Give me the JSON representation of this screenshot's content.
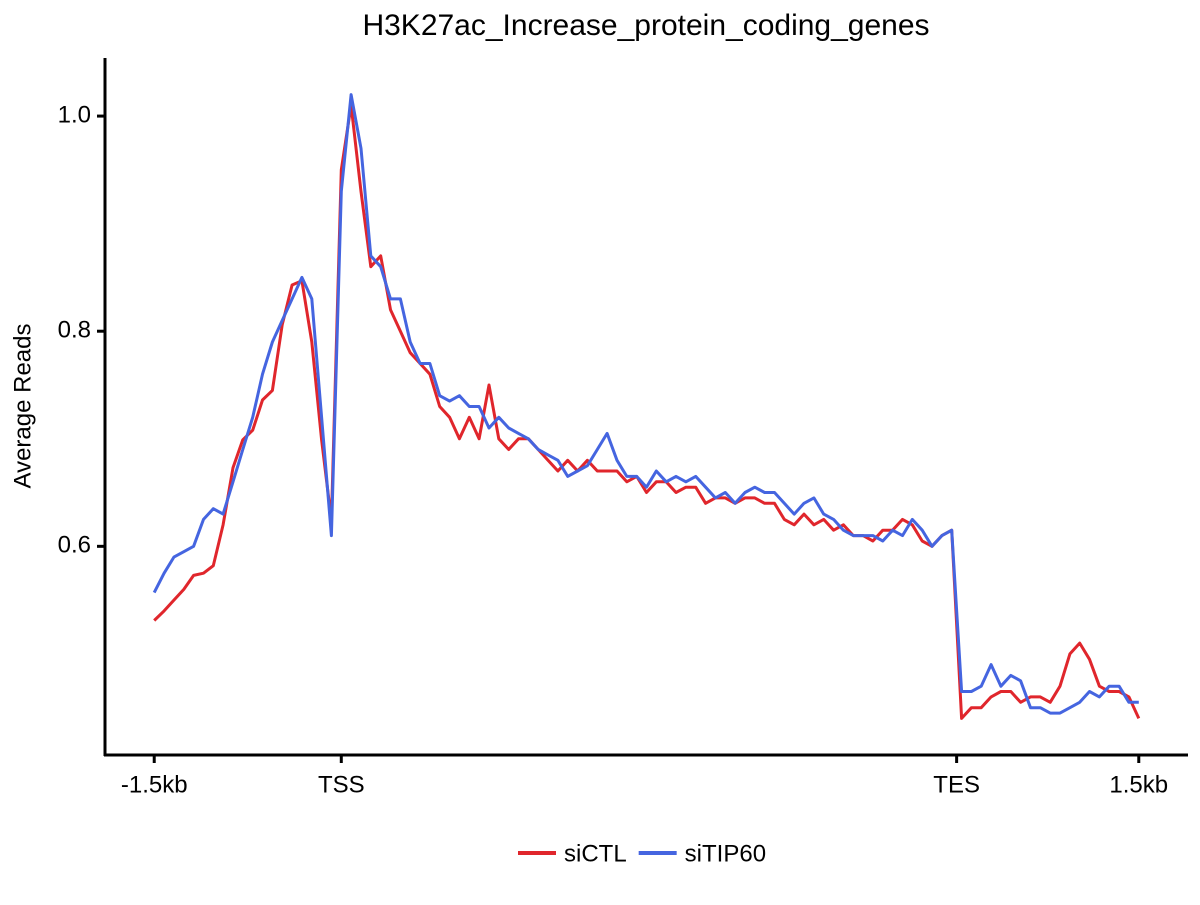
{
  "chart_data": {
    "type": "line",
    "title": "H3K27ac_Increase_protein_coding_genes",
    "y_label": "Average Reads",
    "x": [
      0,
      1,
      2,
      3,
      4,
      5,
      6,
      7,
      8,
      9,
      10,
      11,
      12,
      13,
      14,
      15,
      16,
      17,
      18,
      19,
      20,
      21,
      22,
      23,
      24,
      25,
      26,
      27,
      28,
      29,
      30,
      31,
      32,
      33,
      34,
      35,
      36,
      37,
      38,
      39,
      40,
      41,
      42,
      43,
      44,
      45,
      46,
      47,
      48,
      49,
      50,
      51,
      52,
      53,
      54,
      55,
      56,
      57,
      58,
      59,
      60,
      61,
      62,
      63,
      64,
      65,
      66,
      67,
      68,
      69,
      70,
      71,
      72,
      73,
      74,
      75,
      76,
      77,
      78,
      79,
      80,
      81,
      82,
      83,
      84,
      85,
      86,
      87,
      88,
      89,
      90,
      91,
      92,
      93,
      94,
      95,
      96,
      97,
      98,
      99,
      100
    ],
    "series": [
      {
        "name": "siCTL",
        "color": "#e0262c",
        "values": [
          0.531,
          0.54,
          0.55,
          0.56,
          0.573,
          0.575,
          0.582,
          0.62,
          0.673,
          0.699,
          0.708,
          0.736,
          0.745,
          0.806,
          0.843,
          0.847,
          0.79,
          0.699,
          0.624,
          0.95,
          1.01,
          0.93,
          0.86,
          0.87,
          0.82,
          0.8,
          0.78,
          0.77,
          0.76,
          0.73,
          0.72,
          0.7,
          0.72,
          0.7,
          0.75,
          0.7,
          0.69,
          0.7,
          0.7,
          0.69,
          0.68,
          0.67,
          0.68,
          0.67,
          0.68,
          0.67,
          0.67,
          0.67,
          0.66,
          0.665,
          0.65,
          0.66,
          0.66,
          0.65,
          0.655,
          0.655,
          0.64,
          0.645,
          0.645,
          0.64,
          0.645,
          0.645,
          0.64,
          0.64,
          0.625,
          0.62,
          0.63,
          0.62,
          0.625,
          0.615,
          0.62,
          0.61,
          0.61,
          0.605,
          0.615,
          0.615,
          0.625,
          0.62,
          0.605,
          0.6,
          0.61,
          0.615,
          0.44,
          0.45,
          0.45,
          0.46,
          0.465,
          0.465,
          0.455,
          0.46,
          0.46,
          0.455,
          0.47,
          0.5,
          0.51,
          0.495,
          0.47,
          0.465,
          0.465,
          0.46,
          0.44
        ]
      },
      {
        "name": "siTIP60",
        "color": "#4565e0",
        "values": [
          0.557,
          0.575,
          0.59,
          0.595,
          0.6,
          0.625,
          0.635,
          0.63,
          0.66,
          0.69,
          0.72,
          0.76,
          0.79,
          0.81,
          0.83,
          0.85,
          0.83,
          0.72,
          0.61,
          0.93,
          1.02,
          0.97,
          0.87,
          0.86,
          0.83,
          0.83,
          0.79,
          0.77,
          0.77,
          0.74,
          0.735,
          0.74,
          0.73,
          0.73,
          0.71,
          0.72,
          0.71,
          0.705,
          0.7,
          0.69,
          0.685,
          0.68,
          0.665,
          0.67,
          0.675,
          0.69,
          0.705,
          0.68,
          0.665,
          0.665,
          0.655,
          0.67,
          0.66,
          0.665,
          0.66,
          0.665,
          0.655,
          0.645,
          0.65,
          0.64,
          0.65,
          0.655,
          0.65,
          0.65,
          0.64,
          0.63,
          0.64,
          0.645,
          0.63,
          0.625,
          0.615,
          0.61,
          0.61,
          0.61,
          0.605,
          0.615,
          0.61,
          0.625,
          0.615,
          0.6,
          0.61,
          0.615,
          0.465,
          0.465,
          0.47,
          0.49,
          0.47,
          0.48,
          0.475,
          0.45,
          0.45,
          0.445,
          0.445,
          0.45,
          0.455,
          0.465,
          0.46,
          0.47,
          0.47,
          0.455,
          0.455
        ]
      }
    ],
    "xlim": [
      -5,
      105
    ],
    "ylim": [
      0.406,
      1.054
    ],
    "xticks": [
      {
        "value": 0,
        "label": "-1.5kb"
      },
      {
        "value": 19,
        "label": "TSS"
      },
      {
        "value": 81.5,
        "label": "TES"
      },
      {
        "value": 100,
        "label": "1.5kb"
      }
    ],
    "yticks": [
      0.6,
      0.8,
      {
        "value": 1,
        "label": "1.0"
      }
    ],
    "grid": false,
    "legend": "bottom"
  }
}
